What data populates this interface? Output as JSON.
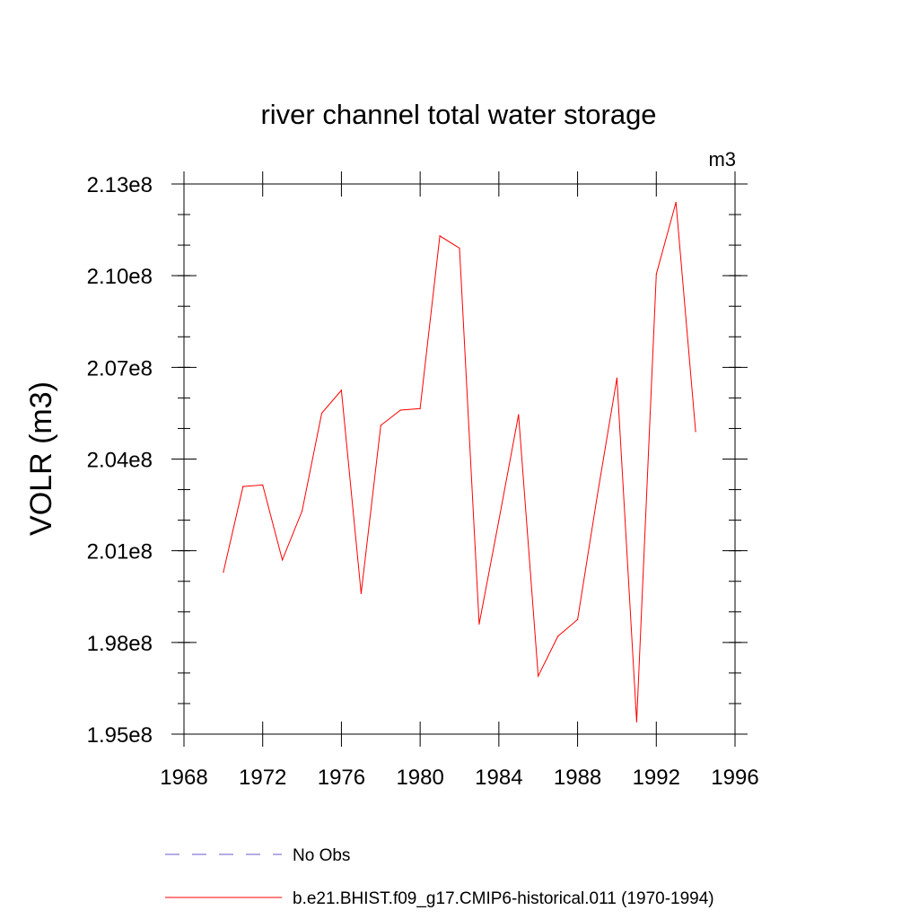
{
  "chart_data": {
    "type": "line",
    "title": "river channel total water storage",
    "units_label": "m3",
    "ylabel": "VOLR  (m3)",
    "xlabel": "",
    "xlim": [
      1968,
      1996
    ],
    "ylim": [
      195000000,
      213000000
    ],
    "x_ticks": [
      1968,
      1972,
      1976,
      1980,
      1984,
      1988,
      1992,
      1996
    ],
    "x_tick_labels": [
      "1968",
      "1972",
      "1976",
      "1980",
      "1984",
      "1988",
      "1992",
      "1996"
    ],
    "y_ticks": [
      195000000,
      198000000,
      201000000,
      204000000,
      207000000,
      210000000,
      213000000
    ],
    "y_tick_labels": [
      "1.95e8",
      "1.98e8",
      "2.01e8",
      "2.04e8",
      "2.07e8",
      "2.10e8",
      "2.13e8"
    ],
    "grid": false,
    "legend_position": "bottom",
    "series": [
      {
        "name": "b.e21.BHIST.f09_g17.CMIP6-historical.011 (1970-1994)",
        "color": "#ff0000",
        "style": "solid",
        "x": [
          1970,
          1971,
          1972,
          1973,
          1974,
          1975,
          1976,
          1977,
          1978,
          1979,
          1980,
          1981,
          1982,
          1983,
          1984,
          1985,
          1986,
          1987,
          1988,
          1989,
          1990,
          1991,
          1992,
          1993,
          1994
        ],
        "y": [
          200300000,
          203100000,
          203150000,
          200700000,
          202300000,
          205500000,
          206250000,
          199600000,
          205100000,
          205600000,
          205650000,
          211300000,
          210900000,
          198600000,
          202000000,
          205450000,
          196900000,
          198200000,
          198750000,
          202800000,
          206650000,
          195400000,
          210050000,
          212400000,
          204900000
        ]
      }
    ],
    "legend": [
      {
        "label": "No Obs",
        "color": "#6a5acd",
        "style": "dashed"
      },
      {
        "label": "b.e21.BHIST.f09_g17.CMIP6-historical.011 (1970-1994)",
        "color": "#ff0000",
        "style": "solid"
      }
    ]
  }
}
